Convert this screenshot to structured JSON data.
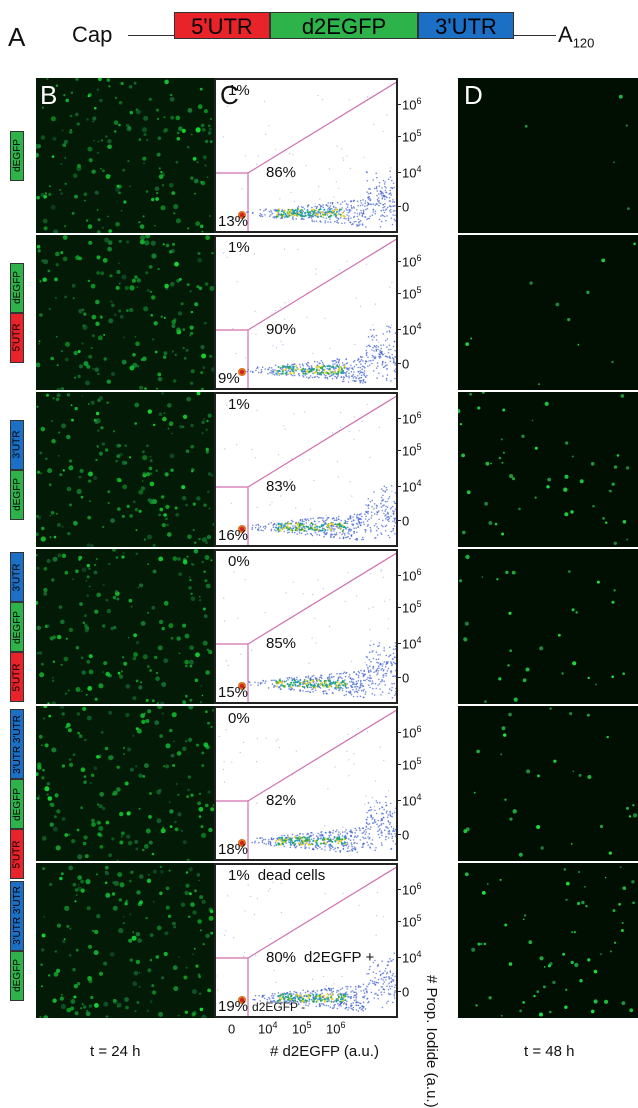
{
  "panel_labels": {
    "a": "A",
    "b": "B",
    "c": "C",
    "d": "D"
  },
  "construct": {
    "cap": "Cap",
    "segments": [
      "5'UTR",
      "d2EGFP",
      "3'UTR"
    ],
    "polya_base": "A",
    "polya_sub": "120"
  },
  "colors": {
    "utr5": "#e8232a",
    "gfp": "#2db34a",
    "utr3": "#1b6fc4",
    "gate": "#d070b0",
    "micro_bg": "#021a06",
    "micro_dim_bg": "#010f03"
  },
  "rows": [
    {
      "labels": [
        {
          "text": "dEGFP",
          "color": "gfp"
        }
      ],
      "dead": "1%",
      "live": "86%",
      "neg": "13%",
      "d_density": 0.05
    },
    {
      "labels": [
        {
          "text": "5'UTR",
          "color": "utr5"
        },
        {
          "text": "dEGFP",
          "color": "gfp"
        }
      ],
      "dead": "1%",
      "live": "90%",
      "neg": "9%",
      "d_density": 0.12
    },
    {
      "labels": [
        {
          "text": "dEGFP",
          "color": "gfp"
        },
        {
          "text": "3'UTR",
          "color": "utr3"
        }
      ],
      "dead": "1%",
      "live": "83%",
      "neg": "16%",
      "d_density": 0.55
    },
    {
      "labels": [
        {
          "text": "5'UTR",
          "color": "utr5"
        },
        {
          "text": "dEGFP",
          "color": "gfp"
        },
        {
          "text": "3'UTR",
          "color": "utr3"
        }
      ],
      "dead": "0%",
      "live": "85%",
      "neg": "15%",
      "d_density": 0.35
    },
    {
      "labels": [
        {
          "text": "5'UTR",
          "color": "utr5"
        },
        {
          "text": "dEGFP",
          "color": "gfp"
        },
        {
          "text": "3'UTR 3'UTR",
          "color": "utr3"
        }
      ],
      "dead": "0%",
      "live": "82%",
      "neg": "18%",
      "d_density": 0.35
    },
    {
      "labels": [
        {
          "text": "dEGFP",
          "color": "gfp"
        },
        {
          "text": "3'UTR 3'UTR",
          "color": "utr3"
        }
      ],
      "dead": "1%",
      "live": "80%",
      "neg": "19%",
      "d_density": 0.7
    }
  ],
  "last_row_labels": {
    "dead": "dead cells",
    "live": "d2EGFP +",
    "neg": "d2EGFP -"
  },
  "y_ticks": [
    {
      "base": "10",
      "exp": "6"
    },
    {
      "base": "10",
      "exp": "5"
    },
    {
      "base": "10",
      "exp": "4"
    },
    {
      "base": "0",
      "exp": ""
    }
  ],
  "x_ticks": [
    {
      "base": "0",
      "exp": ""
    },
    {
      "base": "10",
      "exp": "4"
    },
    {
      "base": "10",
      "exp": "5"
    },
    {
      "base": "10",
      "exp": "6"
    }
  ],
  "axis_labels": {
    "x": "# d2EGFP (a.u.)",
    "y": "# Prop. Iodide (a.u.)"
  },
  "captions": {
    "b": "t = 24 h",
    "d": "t = 48 h"
  }
}
